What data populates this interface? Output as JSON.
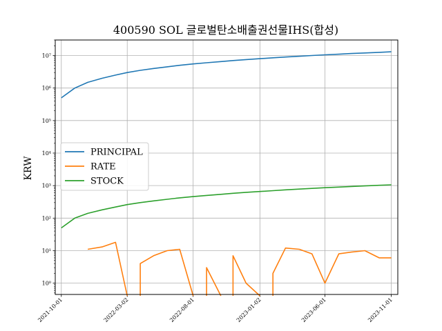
{
  "chart_data": {
    "type": "line",
    "title": "400590 SOL 글로벌탄소배출권선물IHS(합성)",
    "xlabel": "",
    "ylabel": "KRW",
    "yscale": "log",
    "ylim": [
      0.45,
      30000000
    ],
    "xlim": [
      "2021-09-17",
      "2023-11-16"
    ],
    "grid": true,
    "legend_position": "center-left",
    "y_ticks": [
      {
        "value": 1,
        "label": "10⁰"
      },
      {
        "value": 10,
        "label": "10¹"
      },
      {
        "value": 100,
        "label": "10²"
      },
      {
        "value": 1000,
        "label": "10³"
      },
      {
        "value": 10000,
        "label": "10⁴"
      },
      {
        "value": 100000,
        "label": "10⁵"
      },
      {
        "value": 1000000,
        "label": "10⁶"
      },
      {
        "value": 10000000,
        "label": "10⁷"
      }
    ],
    "x_ticks": [
      "2021-10-01",
      "2022-03-02",
      "2022-08-01",
      "2023-01-02",
      "2023-06-01",
      "2023-11-01"
    ],
    "series": [
      {
        "name": "PRINCIPAL",
        "color": "#1f77b4",
        "points": [
          [
            "2021-10-01",
            500000
          ],
          [
            "2021-11-01",
            1000000
          ],
          [
            "2021-12-01",
            1500000
          ],
          [
            "2022-01-03",
            2000000
          ],
          [
            "2022-02-03",
            2500000
          ],
          [
            "2022-03-02",
            3000000
          ],
          [
            "2022-04-01",
            3500000
          ],
          [
            "2022-05-02",
            4000000
          ],
          [
            "2022-06-02",
            4500000
          ],
          [
            "2022-07-01",
            5000000
          ],
          [
            "2022-08-01",
            5500000
          ],
          [
            "2022-09-01",
            6000000
          ],
          [
            "2022-10-04",
            6500000
          ],
          [
            "2022-11-01",
            7000000
          ],
          [
            "2022-12-01",
            7500000
          ],
          [
            "2023-01-02",
            8000000
          ],
          [
            "2023-02-01",
            8500000
          ],
          [
            "2023-03-02",
            9000000
          ],
          [
            "2023-04-03",
            9500000
          ],
          [
            "2023-05-02",
            10000000
          ],
          [
            "2023-06-01",
            10500000
          ],
          [
            "2023-07-03",
            11000000
          ],
          [
            "2023-08-01",
            11500000
          ],
          [
            "2023-09-01",
            12000000
          ],
          [
            "2023-10-04",
            12500000
          ],
          [
            "2023-11-01",
            13000000
          ]
        ]
      },
      {
        "name": "RATE",
        "color": "#ff7f0e",
        "points": [
          [
            "2021-10-01",
            null
          ],
          [
            "2021-11-01",
            null
          ],
          [
            "2021-12-01",
            11
          ],
          [
            "2022-01-03",
            13
          ],
          [
            "2022-02-03",
            18
          ],
          [
            "2022-03-02",
            null
          ],
          [
            "2022-04-01",
            4
          ],
          [
            "2022-05-02",
            7
          ],
          [
            "2022-06-02",
            10
          ],
          [
            "2022-07-01",
            11
          ],
          [
            "2022-08-01",
            null
          ],
          [
            "2022-09-01",
            3
          ],
          [
            "2022-10-04",
            null
          ],
          [
            "2022-11-01",
            7
          ],
          [
            "2022-12-01",
            1
          ],
          [
            "2023-01-02",
            null
          ],
          [
            "2023-02-01",
            2
          ],
          [
            "2023-03-02",
            12
          ],
          [
            "2023-04-03",
            11
          ],
          [
            "2023-05-02",
            8
          ],
          [
            "2023-06-01",
            1
          ],
          [
            "2023-07-03",
            8
          ],
          [
            "2023-08-01",
            9
          ],
          [
            "2023-09-01",
            10
          ],
          [
            "2023-10-04",
            6
          ],
          [
            "2023-11-01",
            6
          ]
        ]
      },
      {
        "name": "STOCK",
        "color": "#2ca02c",
        "points": [
          [
            "2021-10-01",
            50
          ],
          [
            "2021-11-01",
            100
          ],
          [
            "2021-12-01",
            140
          ],
          [
            "2022-01-03",
            180
          ],
          [
            "2022-02-03",
            220
          ],
          [
            "2022-03-02",
            260
          ],
          [
            "2022-04-01",
            300
          ],
          [
            "2022-05-02",
            340
          ],
          [
            "2022-06-02",
            380
          ],
          [
            "2022-07-01",
            420
          ],
          [
            "2022-08-01",
            460
          ],
          [
            "2022-09-01",
            500
          ],
          [
            "2022-10-04",
            540
          ],
          [
            "2022-11-01",
            580
          ],
          [
            "2022-12-01",
            620
          ],
          [
            "2023-01-02",
            660
          ],
          [
            "2023-02-01",
            700
          ],
          [
            "2023-03-02",
            740
          ],
          [
            "2023-04-03",
            780
          ],
          [
            "2023-05-02",
            820
          ],
          [
            "2023-06-01",
            860
          ],
          [
            "2023-07-03",
            900
          ],
          [
            "2023-08-01",
            940
          ],
          [
            "2023-09-01",
            980
          ],
          [
            "2023-10-04",
            1020
          ],
          [
            "2023-11-01",
            1060
          ]
        ]
      }
    ]
  }
}
